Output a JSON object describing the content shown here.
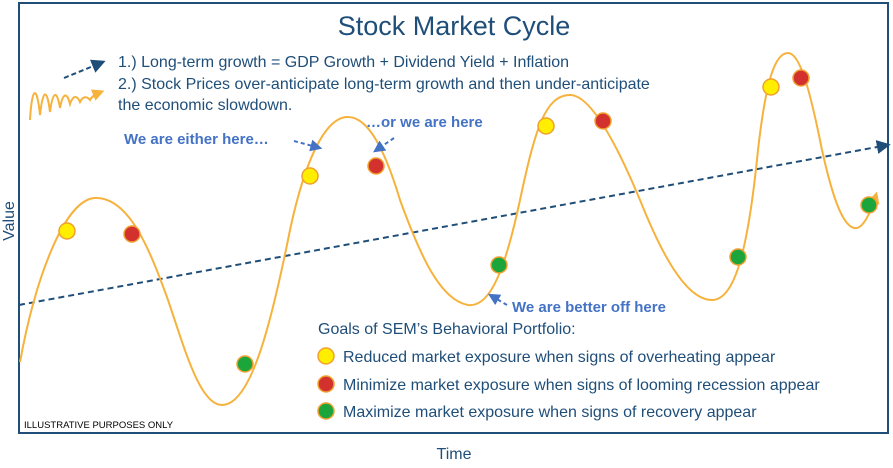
{
  "title": "Stock Market Cycle",
  "notes": [
    "1.) Long-term growth = GDP Growth + Dividend Yield + Inflation",
    "2.) Stock Prices over-anticipate long-term growth and then under-anticipate",
    "the economic slowdown."
  ],
  "callouts": {
    "either_here": "We are either here…",
    "or_here": "…or we are here",
    "better_off": "We are better off here"
  },
  "legend": {
    "title": "Goals of SEM’s Behavioral Portfolio:",
    "items": [
      {
        "color": "yellow",
        "text": "Reduced market exposure when signs of overheating appear"
      },
      {
        "color": "red",
        "text": "Minimize market exposure when signs of looming recession appear"
      },
      {
        "color": "green",
        "text": "Maximize market exposure when signs of recovery appear"
      }
    ]
  },
  "axes": {
    "x": "Time",
    "y": "Value"
  },
  "disclaimer": "ILLUSTRATIVE PURPOSES ONLY",
  "colors": {
    "border": "#1f4e79",
    "curve": "#f6b23c",
    "trend": "#1f4e79",
    "text": "#1f4e79",
    "callout": "#4472c4",
    "yellow": "#ffee00",
    "red": "#d2312e",
    "green": "#1ba53a",
    "dot_outline": "#f0a030"
  }
}
